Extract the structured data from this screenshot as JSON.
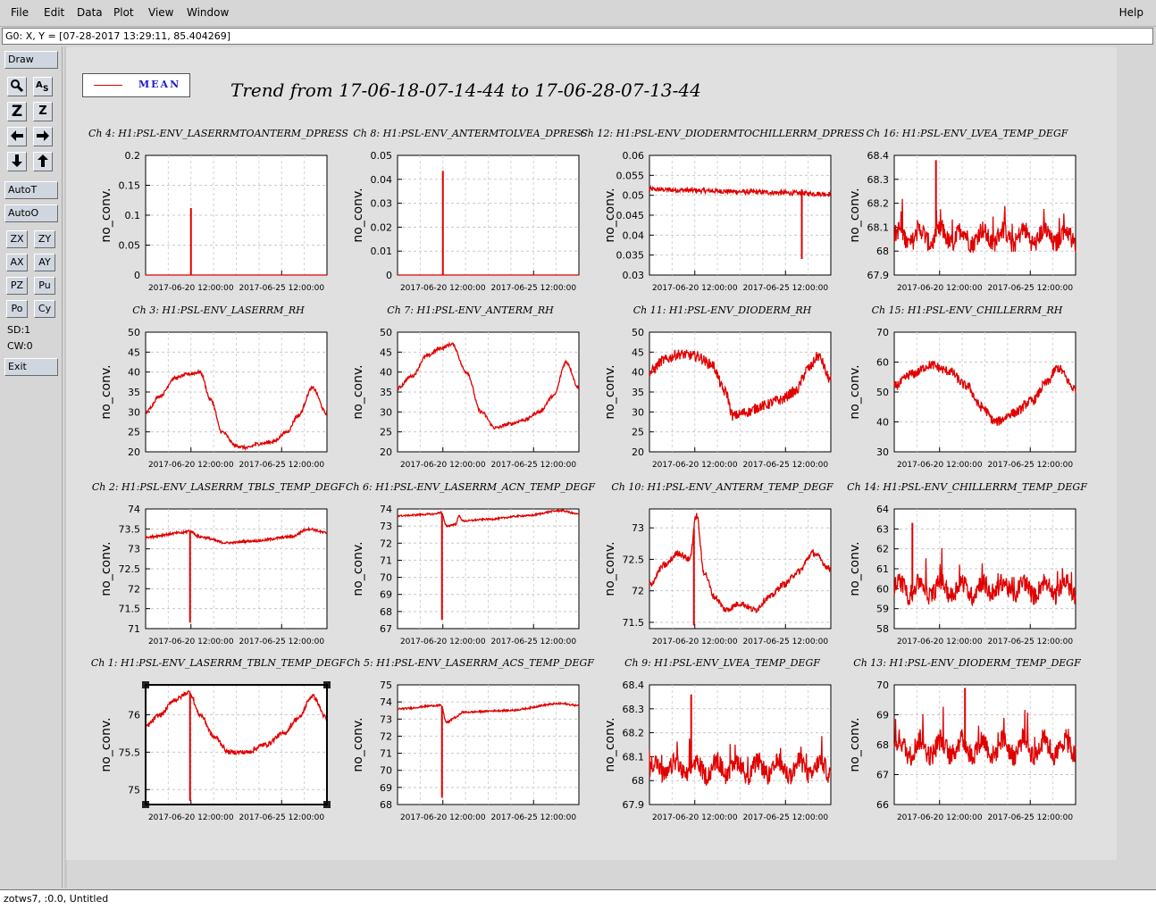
{
  "menubar": {
    "items": [
      "File",
      "Edit",
      "Data",
      "Plot",
      "View",
      "Window"
    ],
    "help": "Help"
  },
  "status_line": "G0: X, Y = [07-28-2017 13:29:11, 85.404269]",
  "toolbar": {
    "draw": "Draw",
    "autot": "AutoT",
    "autoo": "AutoO",
    "small_buttons": [
      "ZX",
      "ZY",
      "AX",
      "AY",
      "PZ",
      "Pu",
      "Po",
      "Cy"
    ],
    "sd": "SD:1",
    "cw": "CW:0",
    "exit": "Exit"
  },
  "bottom_status": "zotws7, :0.0, Untitled",
  "legend": {
    "label": "MEAN",
    "color": "#e00000"
  },
  "main_title": "Trend from 17-06-18-07-14-44 to 17-06-28-07-13-44",
  "chart_data": [
    {
      "type": "line",
      "title": "Ch 4: H1:PSL-ENV_LASERRMTOANTERM_DPRESS",
      "ylabel": "no_conv.",
      "yticks": [
        "0",
        "0.05",
        "0.1",
        "0.15",
        "0.2"
      ],
      "ylim": [
        0,
        0.2
      ],
      "xticks": [
        "2017-06-20 12:00:00",
        "2017-06-25 12:00:00"
      ],
      "profile": "spike",
      "base": 0,
      "noise": 0,
      "spike_at": 0.25,
      "spike_val": 0.112
    },
    {
      "type": "line",
      "title": "Ch 8: H1:PSL-ENV_ANTERMTOLVEA_DPRESS",
      "ylabel": "no_conv.",
      "yticks": [
        "0",
        "0.01",
        "0.02",
        "0.03",
        "0.04",
        "0.05"
      ],
      "ylim": [
        0,
        0.05
      ],
      "xticks": [
        "2017-06-20 12:00:00",
        "2017-06-25 12:00:00"
      ],
      "profile": "spike",
      "base": 0,
      "noise": 0,
      "spike_at": 0.25,
      "spike_val": 0.0435
    },
    {
      "type": "line",
      "title": "Ch 12: H1:PSL-ENV_DIODERMTOCHILLERRM_DPRESS",
      "ylabel": "no_conv.",
      "yticks": [
        "0.03",
        "0.035",
        "0.04",
        "0.045",
        "0.05",
        "0.055",
        "0.06"
      ],
      "ylim": [
        0.03,
        0.06
      ],
      "xticks": [
        "2017-06-20 12:00:00",
        "2017-06-25 12:00:00"
      ],
      "profile": "flatdip",
      "base": 0.0515,
      "noise": 0.0006,
      "spike_at": 0.84,
      "spike_val": 0.034
    },
    {
      "type": "line",
      "title": "Ch 16: H1:PSL-ENV_LVEA_TEMP_DEGF",
      "ylabel": "no_conv.",
      "yticks": [
        "67.9",
        "68",
        "68.1",
        "68.2",
        "68.3",
        "68.4"
      ],
      "ylim": [
        67.9,
        68.4
      ],
      "xticks": [
        "2017-06-20 12:00:00",
        "2017-06-25 12:00:00"
      ],
      "profile": "noisy",
      "base": 68.06,
      "noise": 0.05,
      "spike_at": 0.23,
      "spike_val": 68.38
    },
    {
      "type": "line",
      "title": "Ch 3: H1:PSL-ENV_LASERRM_RH",
      "ylabel": "no_conv.",
      "yticks": [
        "20",
        "25",
        "30",
        "35",
        "40",
        "45",
        "50"
      ],
      "ylim": [
        20,
        50
      ],
      "xticks": [
        "2017-06-20 12:00:00",
        "2017-06-25 12:00:00"
      ],
      "profile": "curve",
      "points": [
        [
          0,
          30
        ],
        [
          0.08,
          34
        ],
        [
          0.16,
          38.5
        ],
        [
          0.24,
          39.5
        ],
        [
          0.3,
          40
        ],
        [
          0.36,
          33
        ],
        [
          0.42,
          25
        ],
        [
          0.5,
          21.5
        ],
        [
          0.56,
          21
        ],
        [
          0.62,
          22
        ],
        [
          0.7,
          22.5
        ],
        [
          0.78,
          25
        ],
        [
          0.84,
          29
        ],
        [
          0.92,
          36
        ],
        [
          1,
          29.5
        ]
      ],
      "noise": 0.4
    },
    {
      "type": "line",
      "title": "Ch 7: H1:PSL-ENV_ANTERM_RH",
      "ylabel": "no_conv.",
      "yticks": [
        "20",
        "25",
        "30",
        "35",
        "40",
        "45",
        "50"
      ],
      "ylim": [
        20,
        50
      ],
      "xticks": [
        "2017-06-20 12:00:00",
        "2017-06-25 12:00:00"
      ],
      "profile": "curve",
      "points": [
        [
          0,
          36
        ],
        [
          0.08,
          39
        ],
        [
          0.16,
          44
        ],
        [
          0.24,
          46
        ],
        [
          0.3,
          47
        ],
        [
          0.38,
          40
        ],
        [
          0.46,
          30
        ],
        [
          0.54,
          26
        ],
        [
          0.62,
          27
        ],
        [
          0.7,
          28
        ],
        [
          0.78,
          30
        ],
        [
          0.86,
          34
        ],
        [
          0.93,
          42.5
        ],
        [
          1,
          36
        ]
      ],
      "noise": 0.4
    },
    {
      "type": "line",
      "title": "Ch 11: H1:PSL-ENV_DIODERM_RH",
      "ylabel": "no_conv.",
      "yticks": [
        "20",
        "25",
        "30",
        "35",
        "40",
        "45",
        "50"
      ],
      "ylim": [
        20,
        50
      ],
      "xticks": [
        "2017-06-20 12:00:00",
        "2017-06-25 12:00:00"
      ],
      "profile": "curve",
      "points": [
        [
          0,
          40
        ],
        [
          0.08,
          43
        ],
        [
          0.16,
          44.5
        ],
        [
          0.26,
          44
        ],
        [
          0.34,
          42
        ],
        [
          0.42,
          35
        ],
        [
          0.46,
          29
        ],
        [
          0.54,
          30
        ],
        [
          0.62,
          31.5
        ],
        [
          0.72,
          33
        ],
        [
          0.8,
          35
        ],
        [
          0.88,
          41
        ],
        [
          0.93,
          44
        ],
        [
          1,
          38
        ]
      ],
      "noise": 1.3
    },
    {
      "type": "line",
      "title": "Ch 15: H1:PSL-ENV_CHILLERRM_RH",
      "ylabel": "no_conv.",
      "yticks": [
        "30",
        "40",
        "50",
        "60",
        "70"
      ],
      "ylim": [
        30,
        70
      ],
      "xticks": [
        "2017-06-20 12:00:00",
        "2017-06-25 12:00:00"
      ],
      "profile": "curve",
      "points": [
        [
          0,
          52
        ],
        [
          0.1,
          56
        ],
        [
          0.2,
          59
        ],
        [
          0.3,
          57
        ],
        [
          0.4,
          52
        ],
        [
          0.48,
          45
        ],
        [
          0.56,
          40
        ],
        [
          0.66,
          43
        ],
        [
          0.76,
          47
        ],
        [
          0.84,
          53
        ],
        [
          0.9,
          58
        ],
        [
          1,
          51
        ]
      ],
      "noise": 1.6
    },
    {
      "type": "line",
      "title": "Ch 2: H1:PSL-ENV_LASERRM_TBLS_TEMP_DEGF",
      "ylabel": "no_conv.",
      "yticks": [
        "71",
        "71.5",
        "72",
        "72.5",
        "73",
        "73.5",
        "74"
      ],
      "ylim": [
        71,
        74
      ],
      "xticks": [
        "2017-06-20 12:00:00",
        "2017-06-25 12:00:00"
      ],
      "profile": "curve",
      "points": [
        [
          0,
          73.3
        ],
        [
          0.2,
          73.4
        ],
        [
          0.24,
          73.45
        ],
        [
          0.3,
          73.3
        ],
        [
          0.45,
          73.15
        ],
        [
          0.6,
          73.2
        ],
        [
          0.8,
          73.3
        ],
        [
          0.9,
          73.5
        ],
        [
          1,
          73.4
        ]
      ],
      "noise": 0.03,
      "dip_at": 0.245,
      "dip_val": 71.15
    },
    {
      "type": "line",
      "title": "Ch 6: H1:PSL-ENV_LASERRM_ACN_TEMP_DEGF",
      "ylabel": "no_conv.",
      "yticks": [
        "67",
        "68",
        "69",
        "70",
        "71",
        "72",
        "73",
        "74"
      ],
      "ylim": [
        67,
        74
      ],
      "xticks": [
        "2017-06-20 12:00:00",
        "2017-06-25 12:00:00"
      ],
      "profile": "curve",
      "points": [
        [
          0,
          73.6
        ],
        [
          0.2,
          73.7
        ],
        [
          0.24,
          73.8
        ],
        [
          0.27,
          73.0
        ],
        [
          0.32,
          73.1
        ],
        [
          0.34,
          73.6
        ],
        [
          0.36,
          73.3
        ],
        [
          0.5,
          73.4
        ],
        [
          0.7,
          73.6
        ],
        [
          0.9,
          73.9
        ],
        [
          1,
          73.7
        ]
      ],
      "noise": 0.05,
      "dip_at": 0.245,
      "dip_val": 67.5
    },
    {
      "type": "line",
      "title": "Ch 10: H1:PSL-ENV_ANTERM_TEMP_DEGF",
      "ylabel": "no_conv.",
      "yticks": [
        "71.5",
        "72",
        "72.5",
        "73"
      ],
      "ylim": [
        71.4,
        73.3
      ],
      "xticks": [
        "2017-06-20 12:00:00",
        "2017-06-25 12:00:00"
      ],
      "profile": "curve",
      "points": [
        [
          0,
          72.1
        ],
        [
          0.08,
          72.4
        ],
        [
          0.16,
          72.6
        ],
        [
          0.22,
          72.5
        ],
        [
          0.26,
          73.2
        ],
        [
          0.3,
          72.3
        ],
        [
          0.36,
          71.9
        ],
        [
          0.42,
          71.7
        ],
        [
          0.5,
          71.8
        ],
        [
          0.58,
          71.7
        ],
        [
          0.66,
          71.9
        ],
        [
          0.74,
          72.1
        ],
        [
          0.82,
          72.3
        ],
        [
          0.9,
          72.6
        ],
        [
          1,
          72.35
        ]
      ],
      "noise": 0.05,
      "dip_at": 0.245,
      "dip_val": 71.45
    },
    {
      "type": "line",
      "title": "Ch 14: H1:PSL-ENV_CHILLERRM_TEMP_DEGF",
      "ylabel": "no_conv.",
      "yticks": [
        "58",
        "59",
        "60",
        "61",
        "62",
        "63",
        "64"
      ],
      "ylim": [
        58,
        64
      ],
      "xticks": [
        "2017-06-20 12:00:00",
        "2017-06-25 12:00:00"
      ],
      "profile": "noisy",
      "base": 60,
      "noise": 0.6,
      "spike_at": 0.1,
      "spike_val": 63.3
    },
    {
      "type": "line",
      "title": "Ch 1: H1:PSL-ENV_LASERRM_TBLN_TEMP_DEGF",
      "ylabel": "no_conv.",
      "yticks": [
        "75",
        "75.5",
        "76"
      ],
      "ylim": [
        74.8,
        76.4
      ],
      "xticks": [
        "2017-06-20 12:00:00",
        "2017-06-25 12:00:00"
      ],
      "profile": "curve",
      "points": [
        [
          0,
          75.85
        ],
        [
          0.08,
          76.0
        ],
        [
          0.16,
          76.2
        ],
        [
          0.24,
          76.3
        ],
        [
          0.3,
          76.0
        ],
        [
          0.38,
          75.7
        ],
        [
          0.46,
          75.5
        ],
        [
          0.56,
          75.5
        ],
        [
          0.66,
          75.6
        ],
        [
          0.76,
          75.75
        ],
        [
          0.84,
          75.95
        ],
        [
          0.92,
          76.25
        ],
        [
          1,
          75.95
        ]
      ],
      "noise": 0.03,
      "dip_at": 0.245,
      "dip_val": 74.85
    },
    {
      "type": "line",
      "title": "Ch 5: H1:PSL-ENV_LASERRM_ACS_TEMP_DEGF",
      "ylabel": "no_conv.",
      "yticks": [
        "68",
        "69",
        "70",
        "71",
        "72",
        "73",
        "74",
        "75"
      ],
      "ylim": [
        68,
        75
      ],
      "xticks": [
        "2017-06-20 12:00:00",
        "2017-06-25 12:00:00"
      ],
      "profile": "curve",
      "points": [
        [
          0,
          73.6
        ],
        [
          0.24,
          73.8
        ],
        [
          0.27,
          72.8
        ],
        [
          0.32,
          73.1
        ],
        [
          0.36,
          73.4
        ],
        [
          0.6,
          73.5
        ],
        [
          0.9,
          73.9
        ],
        [
          1,
          73.8
        ]
      ],
      "noise": 0.05,
      "dip_at": 0.245,
      "dip_val": 68.4
    },
    {
      "type": "line",
      "title": "Ch 9: H1:PSL-ENV_LVEA_TEMP_DEGF",
      "ylabel": "no_conv.",
      "yticks": [
        "67.9",
        "68",
        "68.1",
        "68.2",
        "68.3",
        "68.4"
      ],
      "ylim": [
        67.9,
        68.4
      ],
      "xticks": [
        "2017-06-20 12:00:00",
        "2017-06-25 12:00:00"
      ],
      "profile": "noisy",
      "base": 68.05,
      "noise": 0.05,
      "spike_at": 0.23,
      "spike_val": 68.36
    },
    {
      "type": "line",
      "title": "Ch 13: H1:PSL-ENV_DIODERM_TEMP_DEGF",
      "ylabel": "no_conv.",
      "yticks": [
        "66",
        "67",
        "68",
        "69",
        "70"
      ],
      "ylim": [
        66,
        70
      ],
      "xticks": [
        "2017-06-20 12:00:00",
        "2017-06-25 12:00:00"
      ],
      "profile": "noisy",
      "base": 67.9,
      "noise": 0.45,
      "spike_at": 0.39,
      "spike_val": 69.9
    }
  ]
}
